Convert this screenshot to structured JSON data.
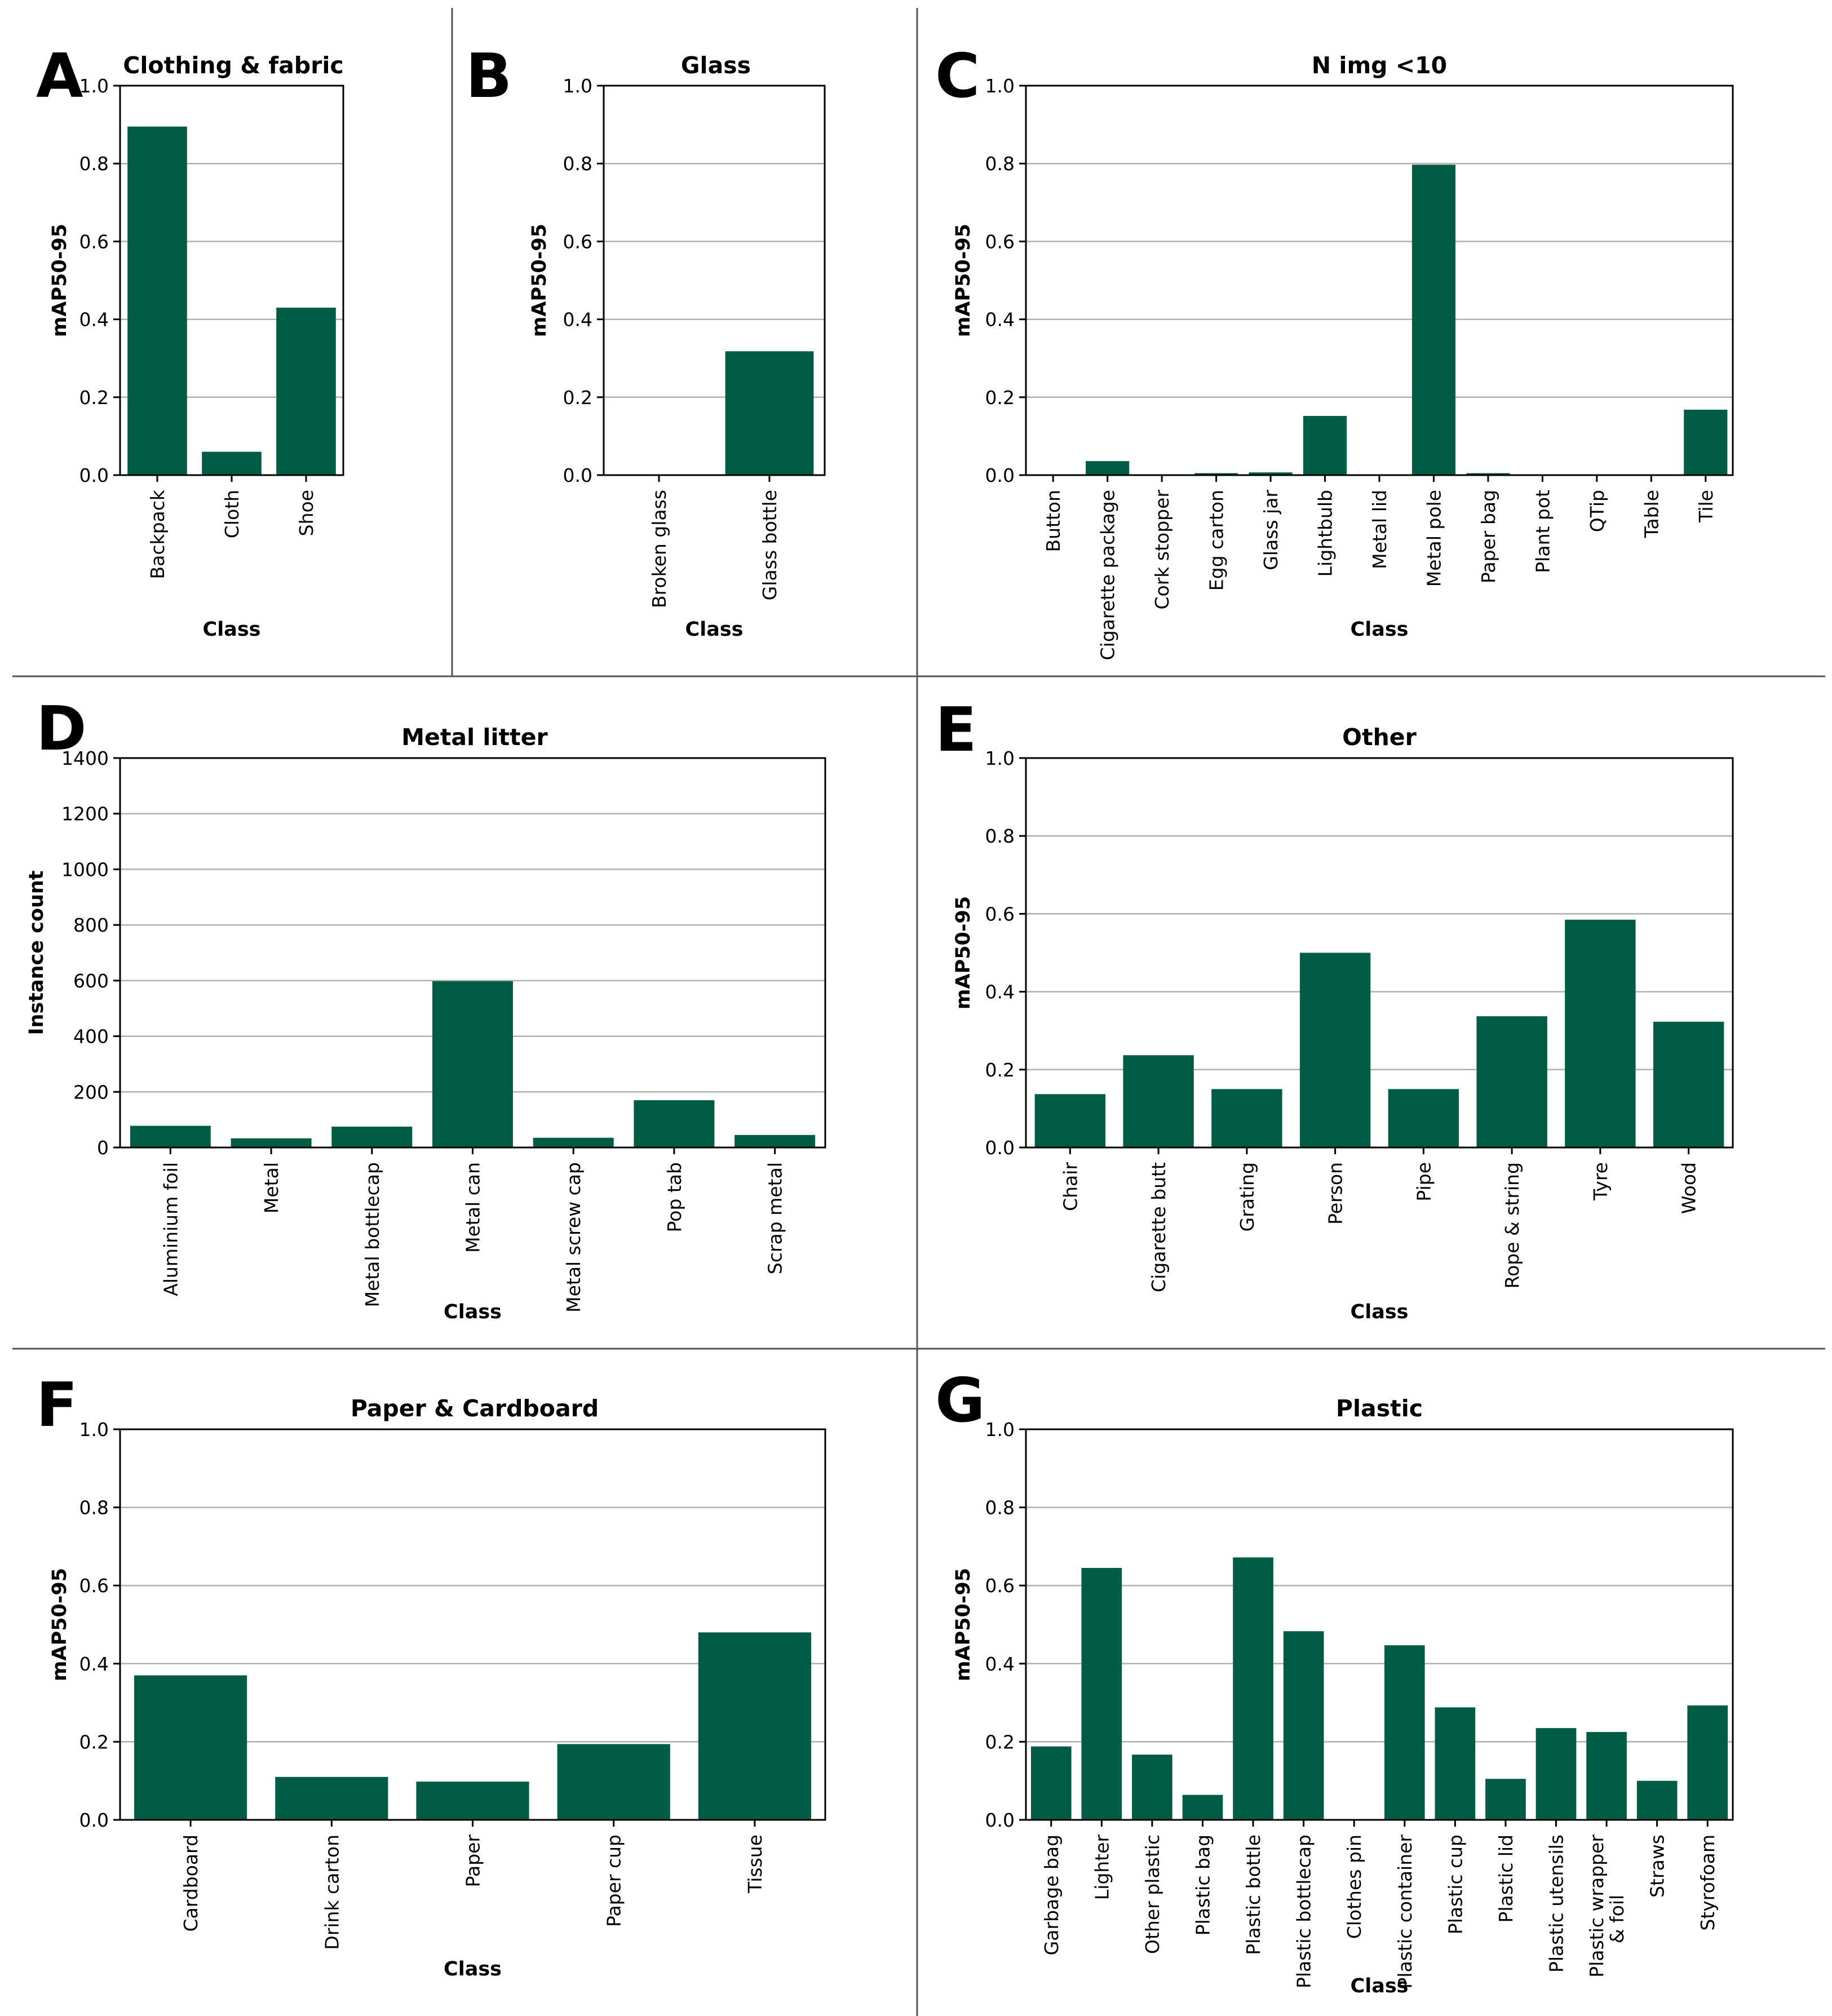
{
  "figure": {
    "bar_color": "#005c45"
  },
  "chart_data": [
    {
      "id": "A",
      "letter": "A",
      "type": "bar",
      "title": "Clothing & fabric",
      "xlabel": "Class",
      "ylabel": "mAP50-95",
      "ylim": [
        0,
        1.0
      ],
      "yticks": [
        "0.0",
        "0.2",
        "0.4",
        "0.6",
        "0.8",
        "1.0"
      ],
      "grid": true,
      "categories": [
        "Backpack",
        "Cloth",
        "Shoe"
      ],
      "values": [
        0.895,
        0.06,
        0.43
      ]
    },
    {
      "id": "B",
      "letter": "B",
      "type": "bar",
      "title": "Glass",
      "xlabel": "Class",
      "ylabel": "mAP50-95",
      "ylim": [
        0,
        1.0
      ],
      "yticks": [
        "0.0",
        "0.2",
        "0.4",
        "0.6",
        "0.8",
        "1.0"
      ],
      "grid": true,
      "categories": [
        "Broken glass",
        "Glass bottle"
      ],
      "values": [
        0.0,
        0.318
      ]
    },
    {
      "id": "C",
      "letter": "C",
      "type": "bar",
      "title": "N img <10",
      "xlabel": "Class",
      "ylabel": "mAP50-95",
      "ylim": [
        0,
        1.0
      ],
      "yticks": [
        "0.0",
        "0.2",
        "0.4",
        "0.6",
        "0.8",
        "1.0"
      ],
      "grid": true,
      "categories": [
        "Button",
        "Cigarette package",
        "Cork stopper",
        "Egg carton",
        "Glass jar",
        "Lightbulb",
        "Metal lid",
        "Metal pole",
        "Paper bag",
        "Plant pot",
        "QTip",
        "Table",
        "Tile"
      ],
      "values": [
        0.0,
        0.036,
        0.0,
        0.005,
        0.007,
        0.152,
        0.0,
        0.797,
        0.005,
        0.0,
        0.0,
        0.0,
        0.168
      ]
    },
    {
      "id": "D",
      "letter": "D",
      "type": "bar",
      "title": "Metal litter",
      "xlabel": "Class",
      "ylabel": "Instance count",
      "ylim": [
        0,
        1400
      ],
      "yticks": [
        "0",
        "200",
        "400",
        "600",
        "800",
        "1000",
        "1200",
        "1400"
      ],
      "grid": true,
      "categories": [
        "Aluminium foil",
        "Metal",
        "Metal bottlecap",
        "Metal can",
        "Metal screw cap",
        "Pop tab",
        "Scrap metal"
      ],
      "values": [
        78,
        33,
        75,
        598,
        35,
        170,
        45
      ]
    },
    {
      "id": "E",
      "letter": "E",
      "type": "bar",
      "title": "Other",
      "xlabel": "Class",
      "ylabel": "mAP50-95",
      "ylim": [
        0,
        1.0
      ],
      "yticks": [
        "0.0",
        "0.2",
        "0.4",
        "0.6",
        "0.8",
        "1.0"
      ],
      "grid": true,
      "categories": [
        "Chair",
        "Cigarette butt",
        "Grating",
        "Person",
        "Pipe",
        "Rope & string",
        "Tyre",
        "Wood"
      ],
      "values": [
        0.137,
        0.237,
        0.15,
        0.5,
        0.15,
        0.337,
        0.585,
        0.323
      ]
    },
    {
      "id": "F",
      "letter": "F",
      "type": "bar",
      "title": "Paper & Cardboard",
      "xlabel": "Class",
      "ylabel": "mAP50-95",
      "ylim": [
        0,
        1.0
      ],
      "yticks": [
        "0.0",
        "0.2",
        "0.4",
        "0.6",
        "0.8",
        "1.0"
      ],
      "grid": true,
      "categories": [
        "Cardboard",
        "Drink carton",
        "Paper",
        "Paper cup",
        "Tissue"
      ],
      "values": [
        0.37,
        0.11,
        0.098,
        0.194,
        0.48
      ]
    },
    {
      "id": "G",
      "letter": "G",
      "type": "bar",
      "title": "Plastic",
      "xlabel": "Class",
      "ylabel": "mAP50-95",
      "ylim": [
        0,
        1.0
      ],
      "yticks": [
        "0.0",
        "0.2",
        "0.4",
        "0.6",
        "0.8",
        "1.0"
      ],
      "grid": true,
      "categories": [
        "Garbage bag",
        "Lighter",
        "Other plastic",
        "Plastic bag",
        "Plastic bottle",
        "Plastic bottlecap",
        "Clothes pin",
        "Plastic container",
        "Plastic cup",
        "Plastic lid",
        "Plastic utensils",
        "Plastic wrapper\n& foil",
        "Straws",
        "Styrofoam"
      ],
      "values": [
        0.188,
        0.645,
        0.167,
        0.064,
        0.672,
        0.483,
        0.0,
        0.447,
        0.288,
        0.105,
        0.235,
        0.225,
        0.1,
        0.293
      ]
    }
  ]
}
